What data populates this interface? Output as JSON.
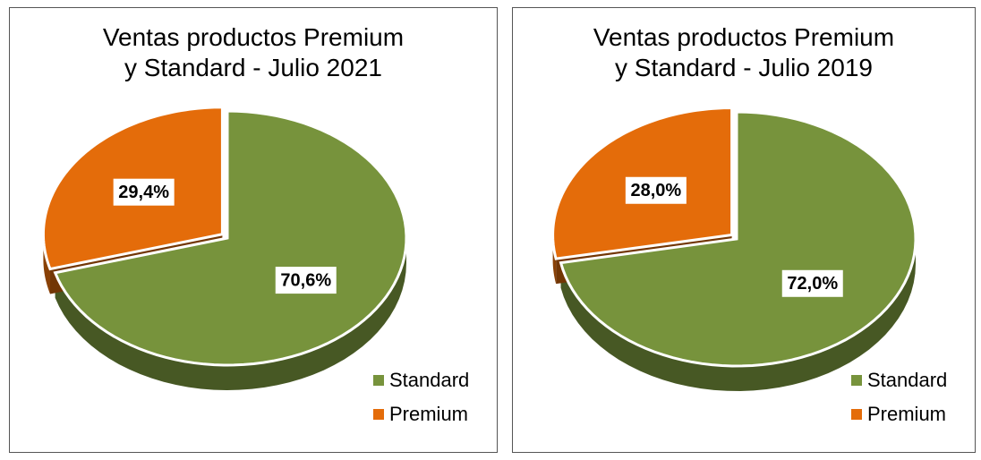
{
  "chart_data": [
    {
      "type": "pie",
      "title": "Ventas productos Premium y Standard - Julio 2021",
      "categories": [
        "Standard",
        "Premium"
      ],
      "values": [
        70.6,
        29.4
      ],
      "value_labels": [
        "70,6%",
        "29,4%"
      ],
      "colors": [
        "#77933c",
        "#e46c0a"
      ],
      "legend": "bottom-right"
    },
    {
      "type": "pie",
      "title": "Ventas productos Premium y Standard - Julio 2019",
      "categories": [
        "Standard",
        "Premium"
      ],
      "values": [
        72.0,
        28.0
      ],
      "value_labels": [
        "72,0%",
        "28,0%"
      ],
      "colors": [
        "#77933c",
        "#e46c0a"
      ],
      "legend": "bottom-right"
    }
  ]
}
